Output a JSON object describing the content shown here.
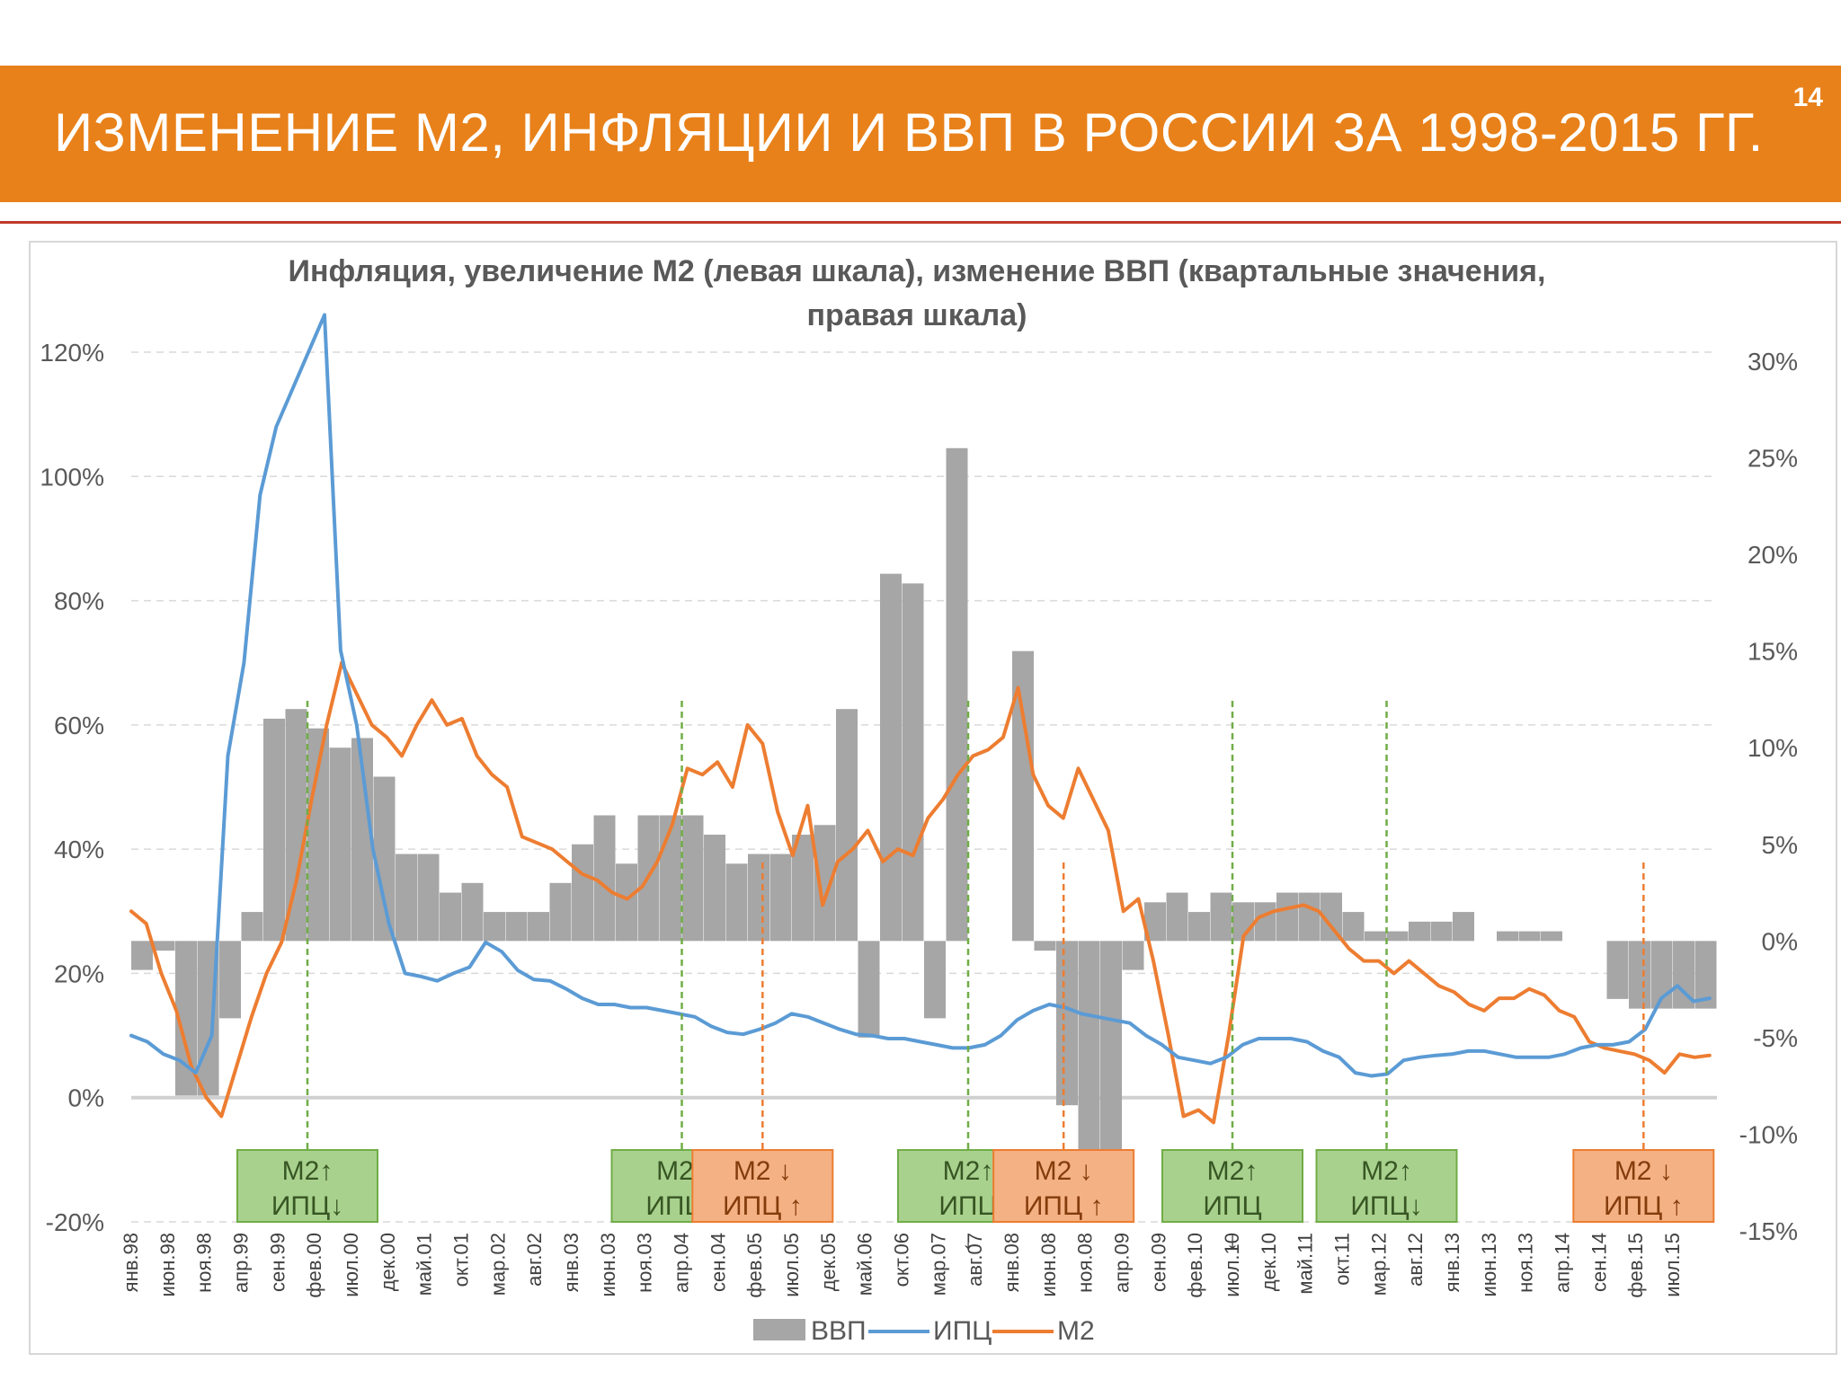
{
  "page": {
    "title": "ИЗМЕНЕНИЕ М2, ИНФЛЯЦИИ И ВВП В РОССИИ ЗА 1998-2015 ГГ.",
    "page_number": "14"
  },
  "chart_data": {
    "type": "bar+line",
    "title_line1": "Инфляция, увеличение М2 (левая шкала), изменение ВВП (квартальные значения,",
    "title_line2": "правая шкала)",
    "left_axis": {
      "min": -20,
      "max": 120,
      "step": 20,
      "labels": [
        "-20%",
        "0%",
        "20%",
        "40%",
        "60%",
        "80%",
        "100%",
        "120%"
      ]
    },
    "right_axis": {
      "min": -15,
      "max": 30,
      "step": 5,
      "labels": [
        "-15%",
        "-10%",
        "-5%",
        "0%",
        "5%",
        "10%",
        "15%",
        "20%",
        "25%",
        "30%"
      ]
    },
    "x_labels": [
      "янв.98",
      "июн.98",
      "ноя.98",
      "апр.99",
      "сен.99",
      "фев.00",
      "июл.00",
      "дек.00",
      "май.01",
      "окт.01",
      "мар.02",
      "авг.02",
      "янв.03",
      "июн.03",
      "ноя.03",
      "апр.04",
      "сен.04",
      "фев.05",
      "июл.05",
      "дек.05",
      "май.06",
      "окт.06",
      "мар.07",
      "авг.07",
      "янв.08",
      "июн.08",
      "ноя.08",
      "апр.09",
      "сен.09",
      "фев.10",
      "июл.10",
      "дек.10",
      "май.11",
      "окт.11",
      "мар.12",
      "авг.12",
      "янв.13",
      "июн.13",
      "ноя.13",
      "апр.14",
      "сен.14",
      "фев.15",
      "июл.15"
    ],
    "x_start": "янв.98",
    "x_end": "дек.15",
    "gridlines": true,
    "legend": [
      "ВВП",
      "ИПЦ",
      "М2"
    ],
    "legend_position": "bottom",
    "colors": {
      "gdp": "#A6A6A6",
      "cpi": "#5B9BD5",
      "m2": "#ED7D31",
      "grid": "#d9d9d9",
      "zero": "#d9d9d9"
    },
    "gdp_quarterly": [
      -1.5,
      -0.5,
      -8.0,
      -8.0,
      -4.0,
      1.5,
      11.5,
      12.0,
      11.0,
      10.0,
      10.5,
      8.5,
      4.5,
      4.5,
      2.5,
      3.0,
      1.5,
      1.5,
      1.5,
      3.0,
      5.0,
      6.5,
      4.0,
      6.5,
      6.5,
      6.5,
      5.5,
      4.0,
      4.5,
      4.5,
      5.5,
      6.0,
      12.0,
      -5.0,
      19.0,
      18.5,
      -4.0,
      25.5,
      0.0,
      0.0,
      15.0,
      -0.5,
      -8.5,
      -11.5,
      -11.0,
      -1.5,
      2.0,
      2.5,
      1.5,
      2.5,
      2.0,
      2.0,
      2.5,
      2.5,
      2.5,
      1.5,
      0.5,
      0.5,
      1.0,
      1.0,
      1.5,
      0.0,
      0.5,
      0.5,
      0.5,
      0.0,
      0.0,
      -3.0,
      -3.5,
      -3.5,
      -3.5,
      -3.5
    ],
    "series": [
      {
        "name": "ИПЦ",
        "values": [
          10.0,
          9.0,
          7.0,
          6.0,
          4.0,
          10.0,
          55.0,
          70.0,
          97.0,
          108.0,
          114.0,
          120.0,
          126.0,
          72.0,
          60.0,
          40.0,
          28.0,
          20.0,
          19.5,
          18.8,
          20.0,
          21.0,
          25.0,
          23.5,
          20.5,
          19.0,
          18.8,
          17.5,
          16.0,
          15.0,
          15.0,
          14.5,
          14.5,
          14.0,
          13.5,
          13.0,
          11.5,
          10.5,
          10.2,
          11.0,
          12.0,
          13.5,
          13.0,
          12.0,
          11.0,
          10.2,
          10.0,
          9.5,
          9.5,
          9.0,
          8.5,
          8.0,
          8.0,
          8.5,
          10.0,
          12.5,
          14.0,
          15.0,
          14.5,
          13.5,
          13.0,
          12.5,
          12.0,
          10.0,
          8.5,
          6.5,
          6.0,
          5.5,
          6.5,
          8.5,
          9.5,
          9.5,
          9.5,
          9.0,
          7.5,
          6.5,
          4.0,
          3.5,
          3.8,
          6.0,
          6.5,
          6.8,
          7.0,
          7.5,
          7.5,
          7.0,
          6.5,
          6.5,
          6.5,
          7.0,
          8.0,
          8.5,
          8.5,
          9.0,
          11.0,
          16.0,
          18.0,
          15.5,
          16.0
        ]
      },
      {
        "name": "М2",
        "values": [
          30.0,
          28.0,
          20.0,
          14.0,
          5.0,
          0.0,
          -3.0,
          5.0,
          13.0,
          20.0,
          25.0,
          35.0,
          48.0,
          60.0,
          70.0,
          65.0,
          60.0,
          58.0,
          55.0,
          60.0,
          64.0,
          60.0,
          61.0,
          55.0,
          52.0,
          50.0,
          42.0,
          41.0,
          40.0,
          38.0,
          36.0,
          35.0,
          33.0,
          32.0,
          34.0,
          38.0,
          44.0,
          53.0,
          52.0,
          54.0,
          50.0,
          60.0,
          57.0,
          46.0,
          39.0,
          47.0,
          31.0,
          38.0,
          40.0,
          43.0,
          38.0,
          40.0,
          39.0,
          45.0,
          48.0,
          52.0,
          55.0,
          56.0,
          58.0,
          66.0,
          52.0,
          47.0,
          45.0,
          53.0,
          48.0,
          43.0,
          30.0,
          32.0,
          22.0,
          10.0,
          -3.0,
          -2.0,
          -4.0,
          10.0,
          26.0,
          29.0,
          30.0,
          30.5,
          31.0,
          30.0,
          27.0,
          24.0,
          22.0,
          22.0,
          20.0,
          22.0,
          20.0,
          18.0,
          17.0,
          15.0,
          14.0,
          16.0,
          16.0,
          17.5,
          16.5,
          14.0,
          13.0,
          9.0,
          8.0,
          7.5,
          7.0,
          6.0,
          4.0,
          7.0,
          6.5,
          6.8
        ]
      }
    ],
    "annotations": [
      {
        "kind": "green",
        "date": "янв.00",
        "line1": "М2↑",
        "line2": "ИПЦ↓",
        "line3": ""
      },
      {
        "kind": "green",
        "date": "апр.04",
        "line1": "М2↑",
        "line2": "ИПЦ↓",
        "line3": ""
      },
      {
        "kind": "orange",
        "date": "мар.05",
        "line1": "М2 ↓",
        "line2": "ИПЦ ↑",
        "line3": ""
      },
      {
        "kind": "green",
        "date": "июл.07",
        "line1": "М2↑",
        "line2": "ИПЦ",
        "line3": "↓"
      },
      {
        "kind": "orange",
        "date": "авг.08",
        "line1": "М2 ↓",
        "line2": "ИПЦ ↑",
        "line3": ""
      },
      {
        "kind": "green",
        "date": "июл.10",
        "line1": "М2↑",
        "line2": "ИПЦ",
        "line3": "↓"
      },
      {
        "kind": "green",
        "date": "апр.12",
        "line1": "М2↑",
        "line2": "ИПЦ↓",
        "line3": ""
      },
      {
        "kind": "orange",
        "date": "мар.15",
        "line1": "М2 ↓",
        "line2": "ИПЦ ↑",
        "line3": ""
      }
    ]
  }
}
